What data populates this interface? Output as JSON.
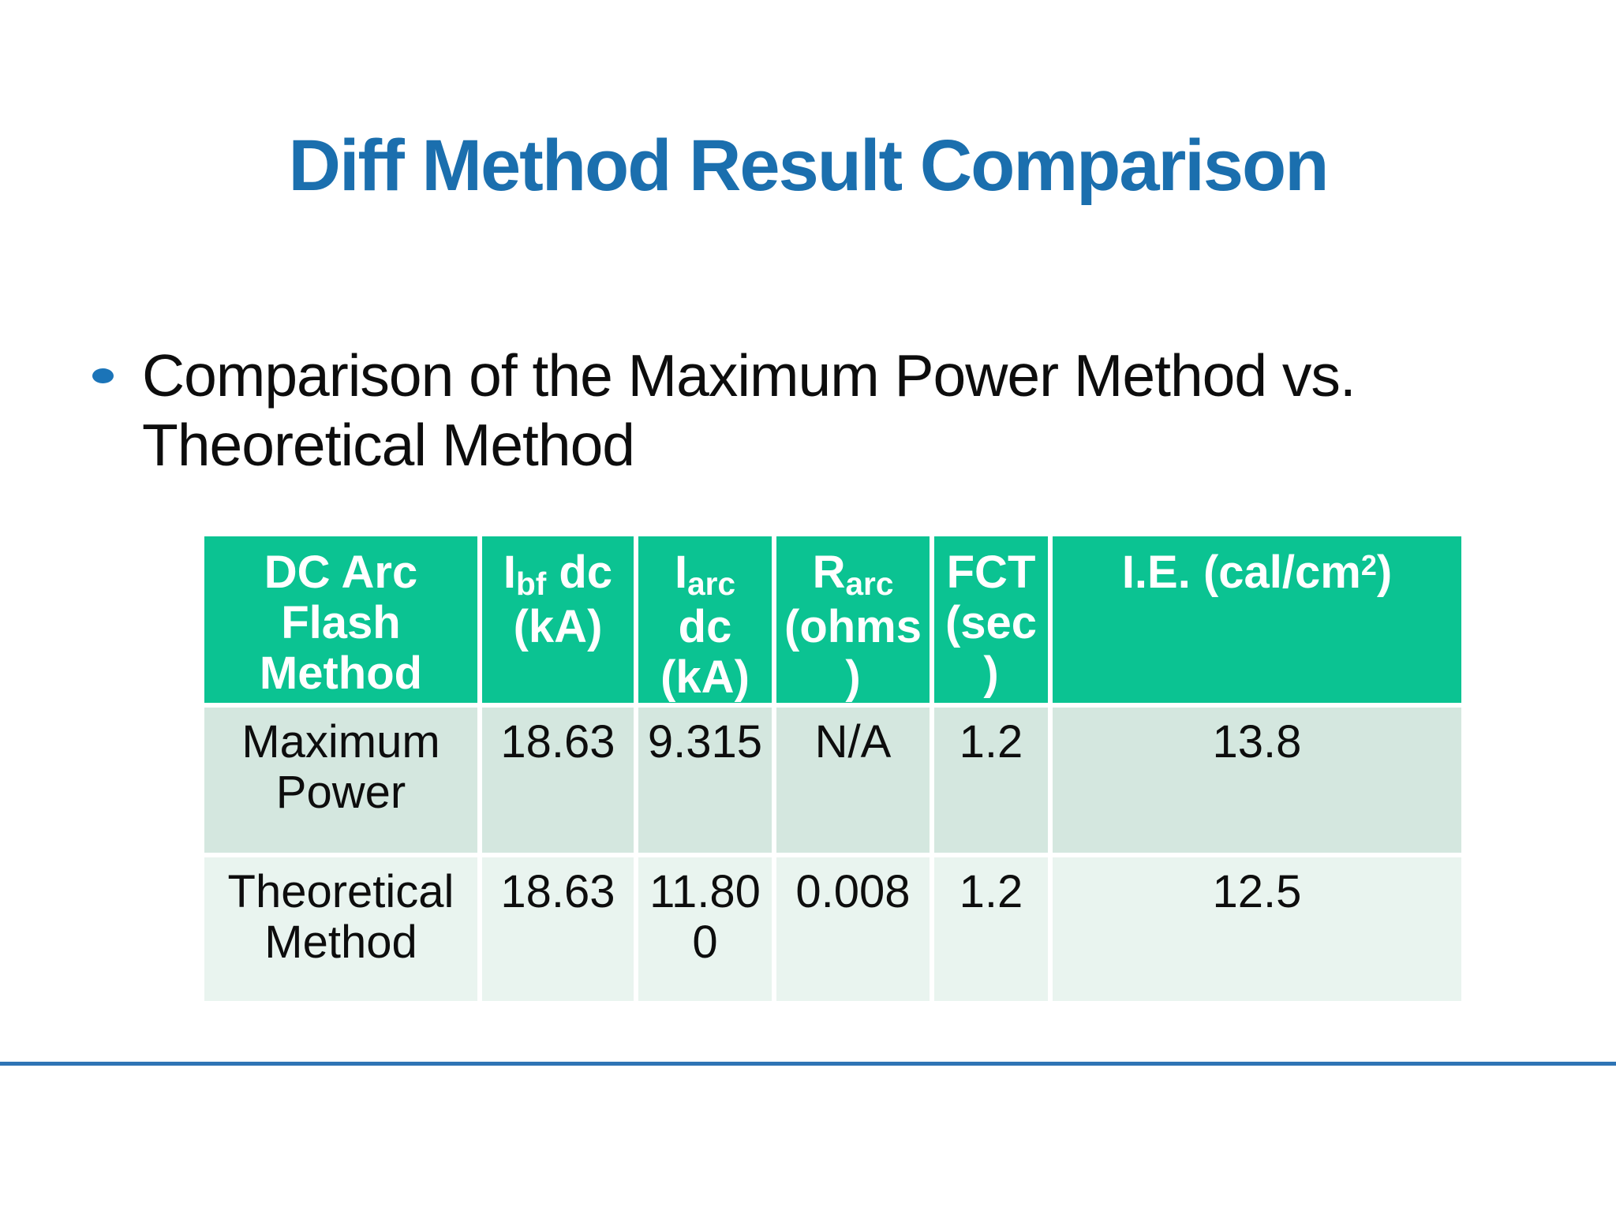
{
  "slide": {
    "title": "Diff Method Result Comparison",
    "bullet_text": "Comparison of the Maximum Power Method vs. Theoretical Method",
    "table": {
      "header_cells": [
        {
          "parts": [
            {
              "t": "DC Arc Flash Method"
            }
          ]
        },
        {
          "parts": [
            {
              "t": "I"
            },
            {
              "sub": "bf"
            },
            {
              "t": " dc (kA)"
            }
          ]
        },
        {
          "parts": [
            {
              "t": "I"
            },
            {
              "sub": "arc"
            },
            {
              "t": " dc (kA)"
            }
          ]
        },
        {
          "parts": [
            {
              "t": "R"
            },
            {
              "sub": "arc"
            },
            {
              "t": " (ohms)"
            }
          ]
        },
        {
          "parts": [
            {
              "t": "FCT (sec)"
            }
          ]
        },
        {
          "parts": [
            {
              "t": "I.E. (cal/cm"
            },
            {
              "sup": "2"
            },
            {
              "t": ")"
            }
          ]
        }
      ],
      "rows": [
        {
          "method": "Maximum Power",
          "values": [
            "18.63",
            "9.315",
            "N/A",
            "1.2",
            "13.8"
          ]
        },
        {
          "method": "Theoretical Method",
          "values": [
            "18.63",
            "11.800",
            "0.008",
            "1.2",
            "12.5"
          ]
        }
      ]
    },
    "colors": {
      "title_blue": "#1B6FAE",
      "bullet_blue": "#1B74B8",
      "header_green": "#0BC392",
      "row1_fill": "#D4E7DF",
      "row2_fill": "#E9F4EF",
      "rule_blue": "#2E74B5"
    }
  }
}
